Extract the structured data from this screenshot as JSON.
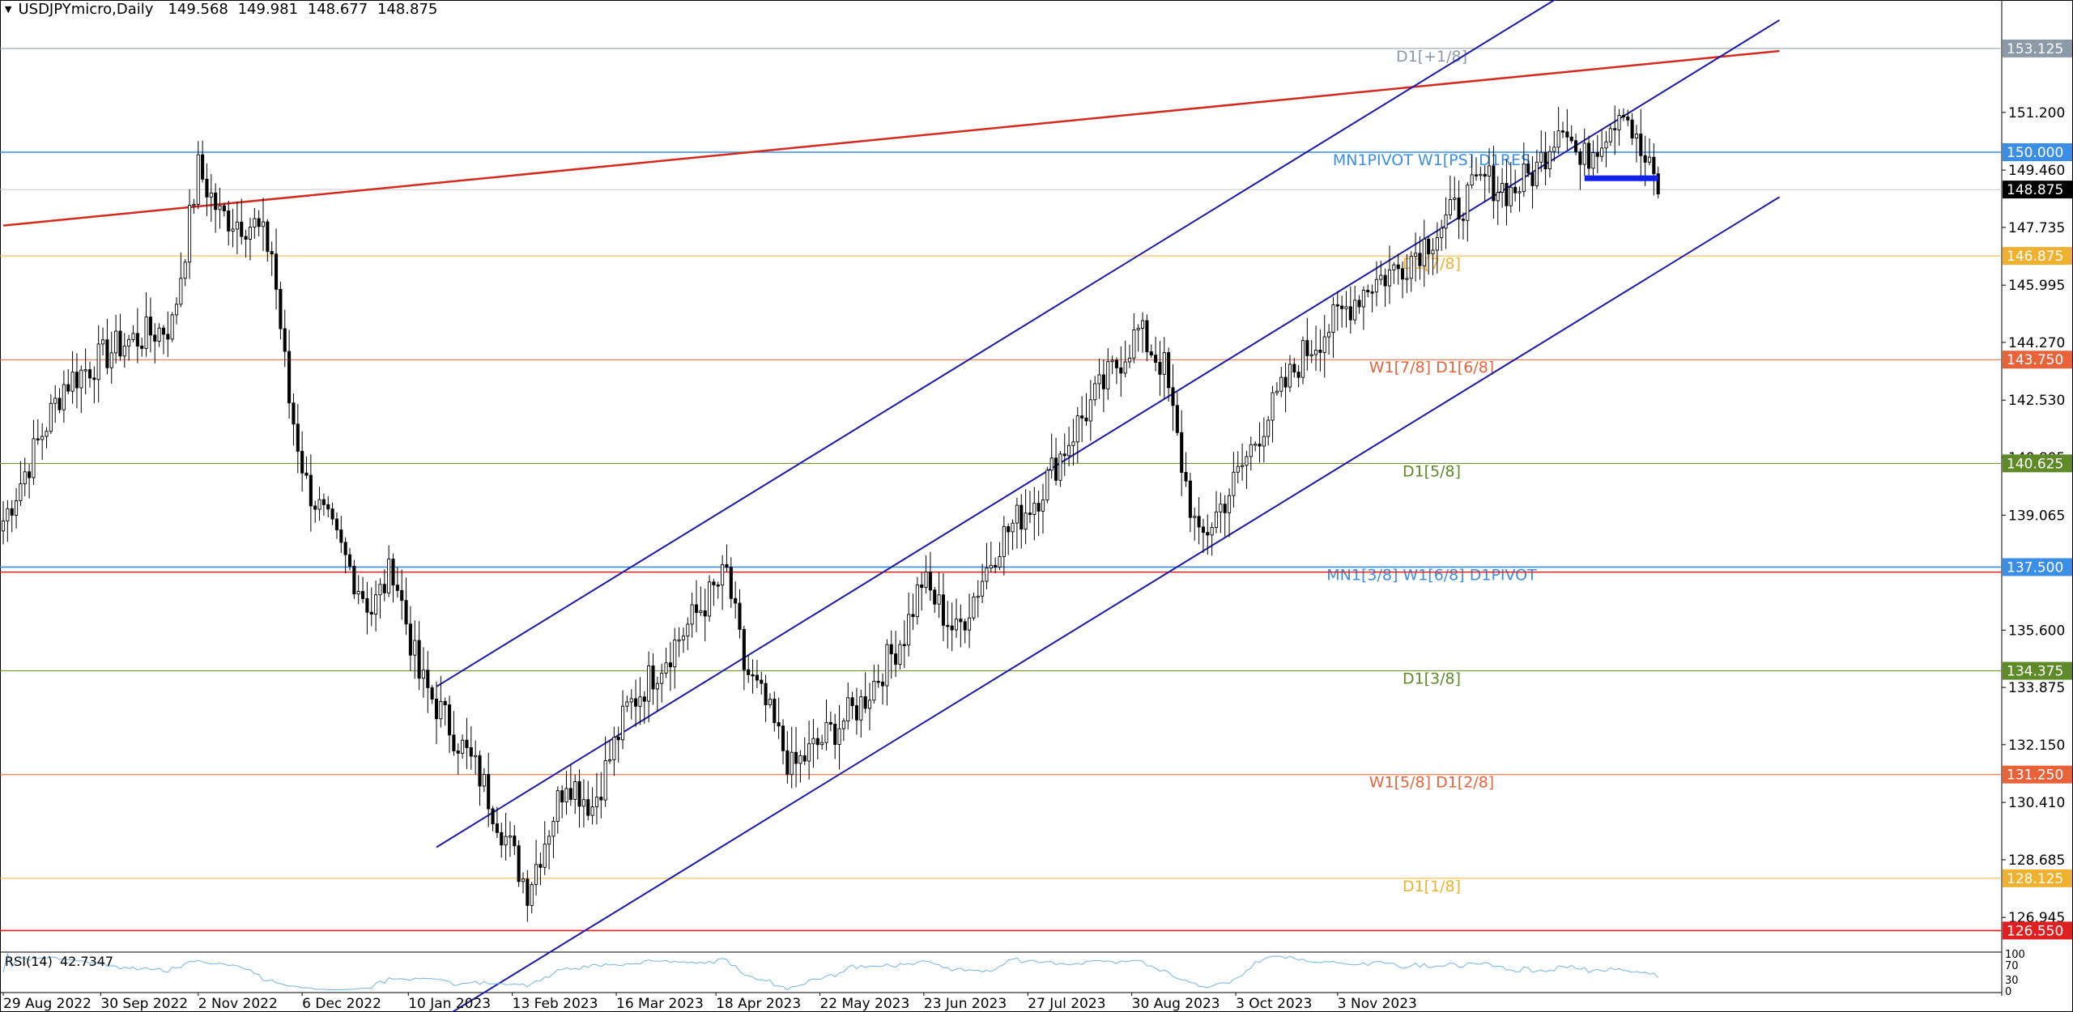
{
  "header": {
    "symbol": "USDJPYmicro,Daily",
    "open": "149.568",
    "high": "149.981",
    "low": "148.677",
    "close": "148.875"
  },
  "rsi": {
    "label": "RSI(14)",
    "value": "42.7347",
    "levels": [
      "100",
      "70",
      "30",
      "0"
    ]
  },
  "colors": {
    "candle": "#000000",
    "channel": "#1a1aa6",
    "trend": "#d42a1e",
    "pivot_blue": "#3a8ee6",
    "level_orange": "#e8623a",
    "level_gold": "#f0b030",
    "level_green": "#5e8a28",
    "level_gray": "#8a9aa8",
    "red_level": "#e02020",
    "rsi": "#6fb4e6"
  },
  "chart_data": {
    "type": "candlestick",
    "symbol": "USDJPYmicro",
    "timeframe": "Daily",
    "ylim": [
      125.95,
      154.0
    ],
    "y_ticks": [
      "151.200",
      "149.460",
      "147.735",
      "145.995",
      "144.270",
      "142.530",
      "140.805",
      "139.065",
      "135.600",
      "133.875",
      "132.150",
      "130.410",
      "128.685",
      "126.945"
    ],
    "x_ticks": [
      "29 Aug 2022",
      "30 Sep 2022",
      "2 Nov 2022",
      "6 Dec 2022",
      "10 Jan 2023",
      "13 Feb 2023",
      "16 Mar 2023",
      "18 Apr 2023",
      "22 May 2023",
      "23 Jun 2023",
      "27 Jul 2023",
      "30 Aug 2023",
      "3 Oct 2023",
      "3 Nov 2023"
    ],
    "path": [
      [
        0,
        138.9
      ],
      [
        14,
        143.0
      ],
      [
        27,
        144.2
      ],
      [
        39,
        144.8
      ],
      [
        45,
        149.5
      ],
      [
        50,
        148.1
      ],
      [
        58,
        147.8
      ],
      [
        62,
        147.0
      ],
      [
        66,
        142.5
      ],
      [
        70,
        140.0
      ],
      [
        85,
        136.2
      ],
      [
        90,
        137.5
      ],
      [
        96,
        134.2
      ],
      [
        110,
        131.2
      ],
      [
        121,
        127.8
      ],
      [
        130,
        131.2
      ],
      [
        136,
        130.3
      ],
      [
        144,
        133.2
      ],
      [
        160,
        136.1
      ],
      [
        167,
        137.3
      ],
      [
        171,
        134.5
      ],
      [
        176,
        133.3
      ],
      [
        182,
        131.4
      ],
      [
        198,
        133.4
      ],
      [
        208,
        135.5
      ],
      [
        212,
        137.1
      ],
      [
        220,
        135.5
      ],
      [
        230,
        138.3
      ],
      [
        239,
        139.7
      ],
      [
        248,
        141.8
      ],
      [
        262,
        144.6
      ],
      [
        268,
        143.5
      ],
      [
        272,
        140.6
      ],
      [
        276,
        138.2
      ],
      [
        284,
        140.0
      ],
      [
        290,
        141.6
      ],
      [
        300,
        143.9
      ],
      [
        315,
        146.0
      ],
      [
        322,
        146.5
      ],
      [
        330,
        147.5
      ],
      [
        342,
        149.2
      ],
      [
        348,
        148.8
      ],
      [
        354,
        149.5
      ],
      [
        360,
        151.1
      ],
      [
        364,
        149.6
      ],
      [
        370,
        150.7
      ],
      [
        374,
        151.5
      ],
      [
        377,
        150.2
      ],
      [
        382,
        148.9
      ]
    ],
    "levels": [
      {
        "label": "D1[+1/8]",
        "value": "153.125",
        "y": 153.125,
        "color": "#8a9aa8",
        "axis_bg": "#8a9aa8"
      },
      {
        "label": "MN1PIVOT W1[PS] D1RES",
        "value": "150.000",
        "y": 150.0,
        "color": "#3a8ee6",
        "axis_bg": "#3a8ee6"
      },
      {
        "label": "D1[7/8]",
        "value": "146.875",
        "y": 146.875,
        "color": "#f0b030",
        "axis_bg": "#f0b030"
      },
      {
        "label": "W1[7/8] D1[6/8]",
        "value": "143.750",
        "y": 143.75,
        "color": "#e8623a",
        "axis_bg": "#e8623a"
      },
      {
        "label": "D1[5/8]",
        "value": "140.625",
        "y": 140.625,
        "color": "#5e8a28",
        "axis_bg": "#5e8a28"
      },
      {
        "label": "MN1[3/8] W1[6/8] D1PIVOT",
        "value": "137.500",
        "y": 137.5,
        "color": "#3a8ee6",
        "axis_bg": "#3a8ee6"
      },
      {
        "label": "D1[3/8]",
        "value": "134.375",
        "y": 134.375,
        "color": "#5e8a28",
        "axis_bg": "#5e8a28"
      },
      {
        "label": "W1[5/8] D1[2/8]",
        "value": "131.250",
        "y": 131.25,
        "color": "#e8623a",
        "axis_bg": "#e8623a"
      },
      {
        "label": "D1[1/8]",
        "value": "128.125",
        "y": 128.125,
        "color": "#f0b030",
        "axis_bg": "#f0b030"
      },
      {
        "label": "",
        "value": "126.550",
        "y": 126.55,
        "color": "#e02020",
        "axis_bg": "#e02020"
      }
    ],
    "current_price": "148.875",
    "trendline": {
      "from": [
        0,
        147.79
      ],
      "to": [
        410,
        153.05
      ]
    },
    "channel": {
      "upper": {
        "from": [
          100,
          133.9
        ],
        "to": [
          410,
          158.75
        ]
      },
      "middle": {
        "from": [
          100,
          129.06
        ],
        "to": [
          410,
          153.98
        ]
      },
      "lower": {
        "from": [
          100,
          123.8
        ],
        "to": [
          410,
          148.65
        ]
      }
    }
  }
}
